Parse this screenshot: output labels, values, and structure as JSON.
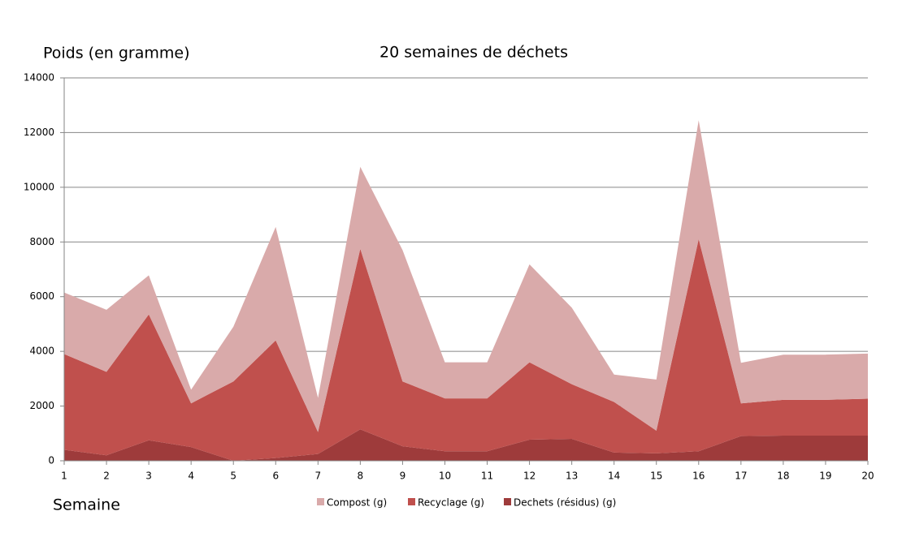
{
  "chart_data": {
    "type": "stacked-area",
    "title": "20 semaines de déchets",
    "y_label": "Poids (en gramme)",
    "x_label": "Semaine",
    "x": [
      1,
      2,
      3,
      4,
      5,
      6,
      7,
      8,
      9,
      10,
      11,
      12,
      13,
      14,
      15,
      16,
      17,
      18,
      19,
      20
    ],
    "series": [
      {
        "name": "Compost (g)",
        "color": "#d9aaaa",
        "values": [
          2250,
          2270,
          1430,
          500,
          2000,
          4150,
          1250,
          3000,
          4800,
          1320,
          1320,
          3580,
          2800,
          1000,
          1870,
          4350,
          1480,
          1650,
          1650,
          1650
        ]
      },
      {
        "name": "Recyclage (g)",
        "color": "#c0504d",
        "values": [
          3500,
          3050,
          4600,
          1600,
          2900,
          4300,
          800,
          6600,
          2370,
          1930,
          1930,
          2830,
          2000,
          1850,
          830,
          7750,
          1200,
          1310,
          1310,
          1350
        ]
      },
      {
        "name": "Dechets (résidus) (g)",
        "color": "#9e3b3b",
        "values": [
          400,
          200,
          750,
          500,
          0,
          100,
          250,
          1150,
          530,
          350,
          350,
          770,
          800,
          300,
          270,
          350,
          900,
          920,
          920,
          920
        ]
      }
    ],
    "xlim": [
      1,
      20
    ],
    "xticks": [
      1,
      2,
      3,
      4,
      5,
      6,
      7,
      8,
      9,
      10,
      11,
      12,
      13,
      14,
      15,
      16,
      17,
      18,
      19,
      20
    ],
    "ylim": [
      0,
      14000
    ],
    "yticks": [
      0,
      2000,
      4000,
      6000,
      8000,
      10000,
      12000,
      14000
    ],
    "grid": true,
    "legend": "bottom"
  }
}
